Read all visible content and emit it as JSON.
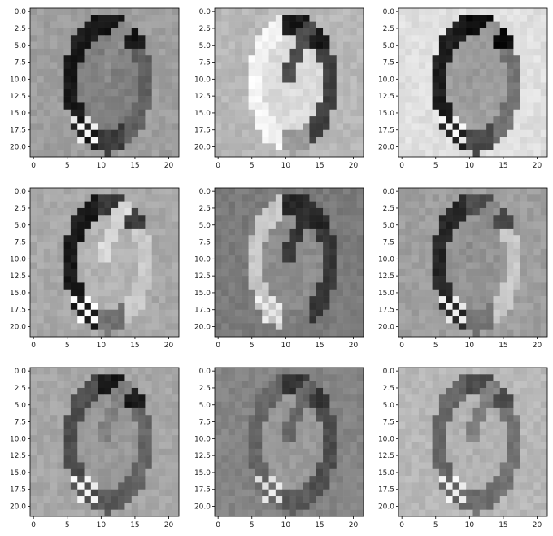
{
  "chart_data": {
    "type": "heatmap",
    "description": "Grid of grayscale feature-map images (matplotlib imshow) of a handwritten digit '6'",
    "grid": {
      "rows": 3,
      "cols": 3
    },
    "cmap": "gray",
    "xlim": [
      -0.5,
      21.5
    ],
    "ylim": [
      21.5,
      -0.5
    ],
    "xticks": [
      0,
      5,
      10,
      15,
      20
    ],
    "xtick_labels": [
      "0",
      "5",
      "10",
      "15",
      "20"
    ],
    "yticks": [
      0,
      2.5,
      5,
      7.5,
      10,
      12.5,
      15,
      17.5,
      20
    ],
    "ytick_labels": [
      "0.0",
      "2.5",
      "5.0",
      "7.5",
      "10.0",
      "12.5",
      "15.0",
      "17.5",
      "20.0"
    ],
    "grid_on": false,
    "panels": [
      {
        "index": 1,
        "background": 0.62,
        "inner": 0.5,
        "left_edge": 0.1,
        "right_edge": 0.38,
        "top_edge": 0.08,
        "highlight": 0.95,
        "stem": 0.55
      },
      {
        "index": 2,
        "background": 0.72,
        "inner": 0.86,
        "left_edge": 0.96,
        "right_edge": 0.25,
        "top_edge": 0.1,
        "highlight": 0.95,
        "stem": 0.3
      },
      {
        "index": 3,
        "background": 0.88,
        "inner": 0.62,
        "left_edge": 0.12,
        "right_edge": 0.45,
        "top_edge": 0.05,
        "highlight": 0.95,
        "stem": 0.6
      },
      {
        "index": 4,
        "background": 0.66,
        "inner": 0.7,
        "left_edge": 0.1,
        "right_edge": 0.8,
        "top_edge": 0.22,
        "highlight": 0.98,
        "stem": 0.85
      },
      {
        "index": 5,
        "background": 0.48,
        "inner": 0.55,
        "left_edge": 0.78,
        "right_edge": 0.22,
        "top_edge": 0.15,
        "highlight": 0.92,
        "stem": 0.2
      },
      {
        "index": 6,
        "background": 0.62,
        "inner": 0.58,
        "left_edge": 0.15,
        "right_edge": 0.78,
        "top_edge": 0.3,
        "highlight": 0.92,
        "stem": 0.55
      },
      {
        "index": 7,
        "background": 0.65,
        "inner": 0.6,
        "left_edge": 0.3,
        "right_edge": 0.4,
        "top_edge": 0.1,
        "highlight": 0.95,
        "stem": 0.5
      },
      {
        "index": 8,
        "background": 0.52,
        "inner": 0.6,
        "left_edge": 0.4,
        "right_edge": 0.3,
        "top_edge": 0.2,
        "highlight": 0.9,
        "stem": 0.4
      },
      {
        "index": 9,
        "background": 0.72,
        "inner": 0.7,
        "left_edge": 0.4,
        "right_edge": 0.45,
        "top_edge": 0.3,
        "highlight": 0.95,
        "stem": 0.5
      }
    ]
  }
}
